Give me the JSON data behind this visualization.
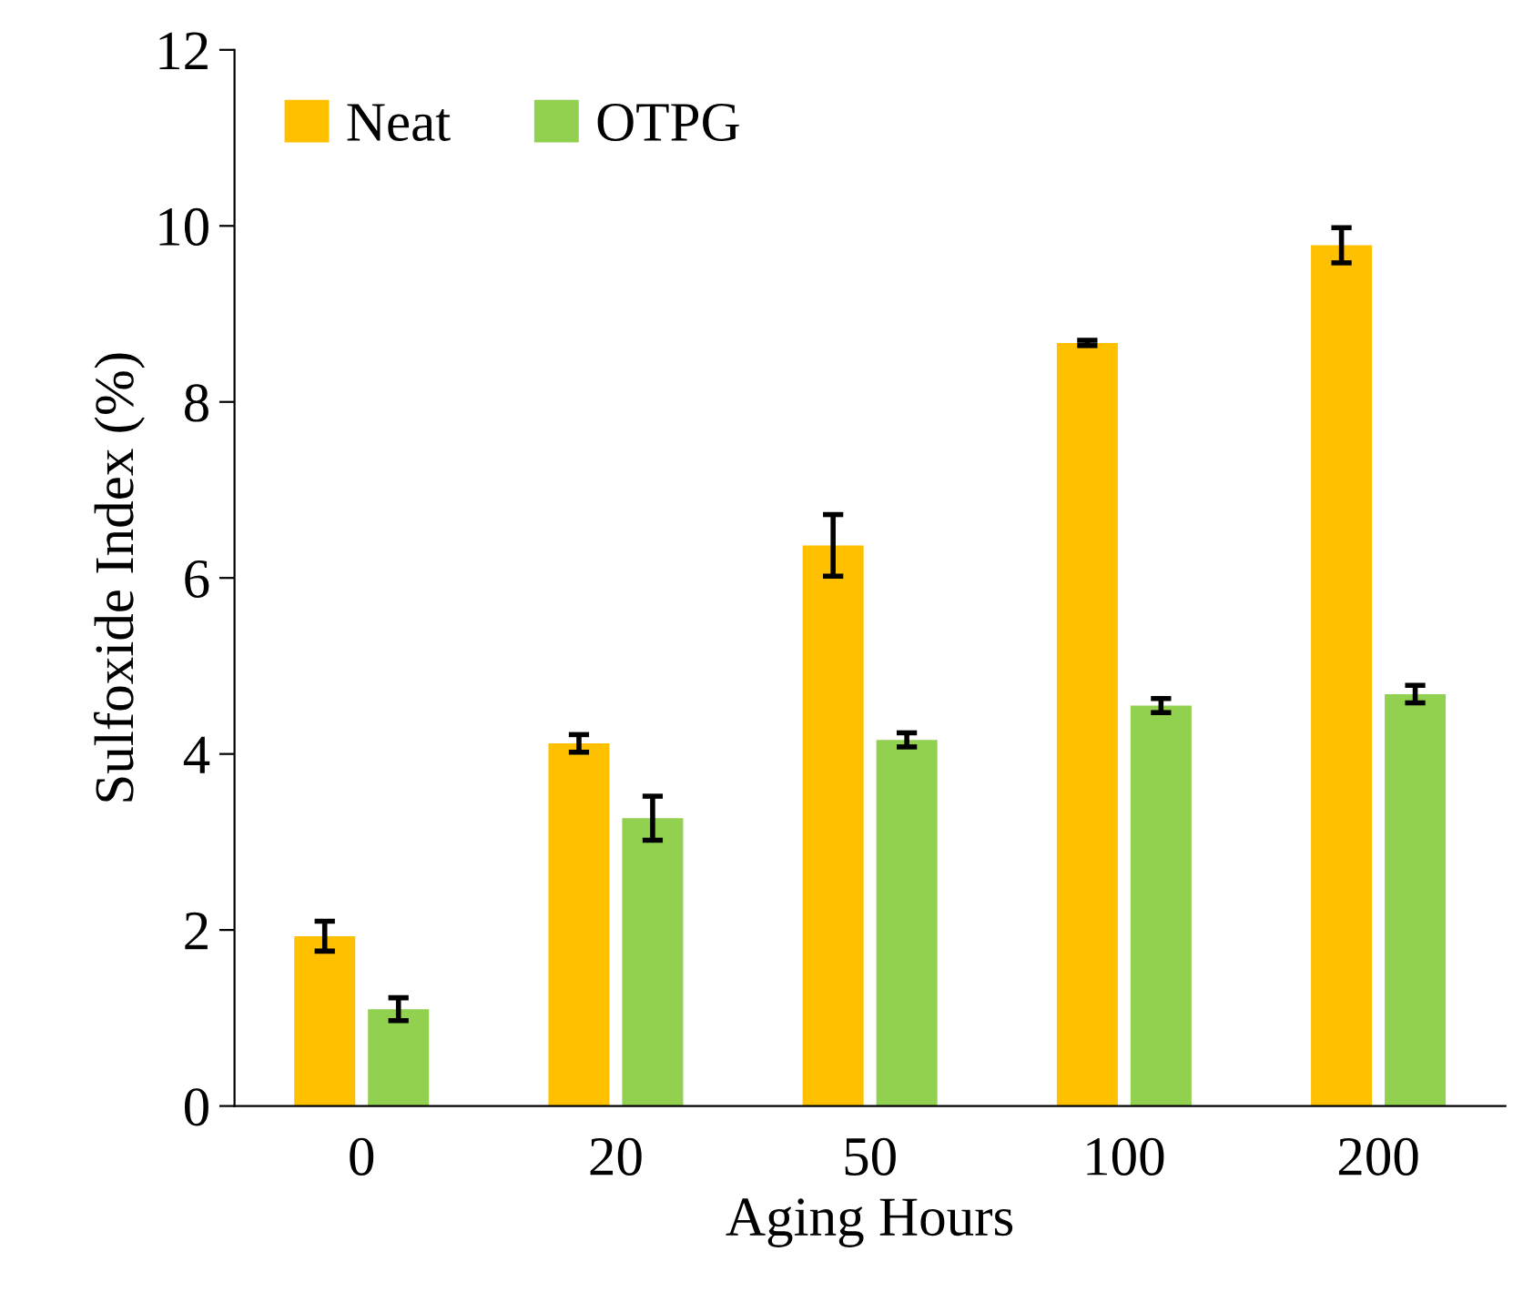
{
  "chart_data": {
    "type": "bar",
    "xlabel": "Aging Hours",
    "ylabel": "Sulfoxide Index (%)",
    "categories": [
      "0",
      "20",
      "50",
      "100",
      "200"
    ],
    "series": [
      {
        "name": "Neat",
        "color": "#ffc000",
        "values": [
          1.93,
          4.12,
          6.37,
          8.67,
          9.78
        ],
        "errors": [
          0.17,
          0.1,
          0.35,
          0.03,
          0.2
        ]
      },
      {
        "name": "OTPG",
        "color": "#92d050",
        "values": [
          1.1,
          3.27,
          4.16,
          4.55,
          4.68
        ],
        "errors": [
          0.13,
          0.25,
          0.08,
          0.08,
          0.1
        ]
      }
    ],
    "ylim": [
      0,
      12
    ],
    "yticks": [
      0,
      2,
      4,
      6,
      8,
      10,
      12
    ],
    "grid": false,
    "legend": "top left"
  }
}
